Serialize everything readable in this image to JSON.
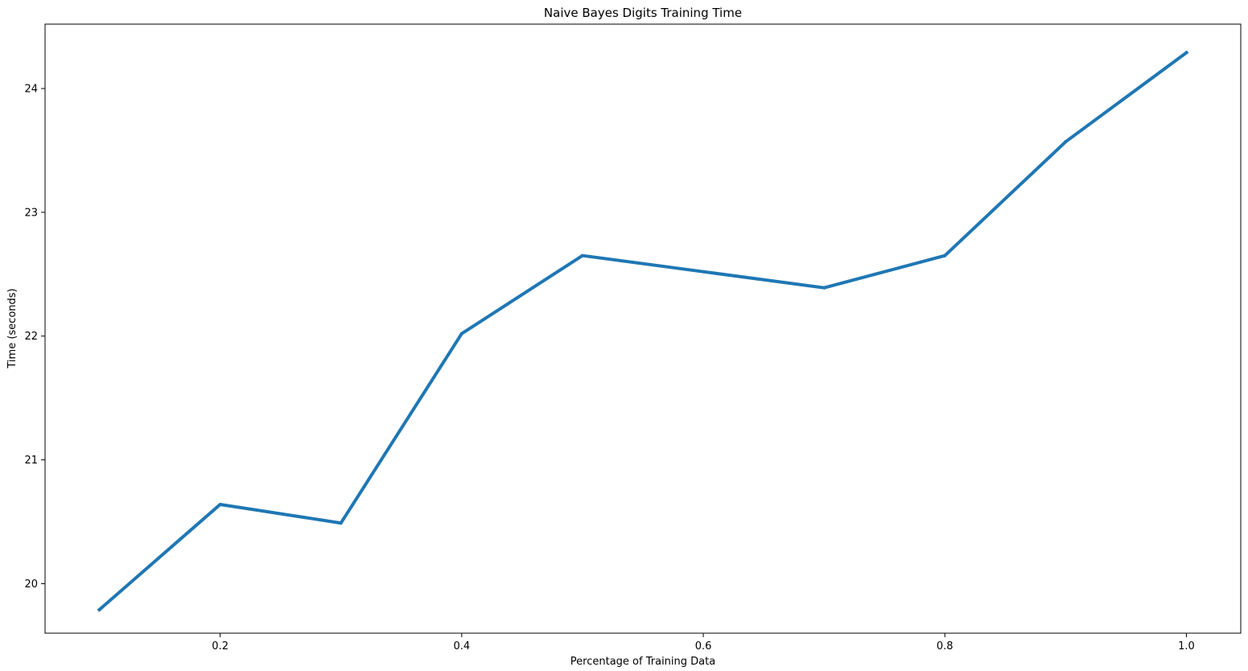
{
  "chart_data": {
    "type": "line",
    "title": "Naive Bayes Digits Training Time",
    "xlabel": "Percentage of Training Data",
    "ylabel": "Time (seconds)",
    "xlim": [
      0.055,
      1.045
    ],
    "ylim": [
      19.6,
      24.52
    ],
    "xticks": [
      0.2,
      0.4,
      0.6,
      0.8,
      1.0
    ],
    "xtick_labels": [
      "0.2",
      "0.4",
      "0.6",
      "0.8",
      "1.0"
    ],
    "yticks": [
      20,
      21,
      22,
      23,
      24
    ],
    "ytick_labels": [
      "20",
      "21",
      "22",
      "23",
      "24"
    ],
    "grid": false,
    "legend": "none",
    "color": "#1f77b4",
    "series": [
      {
        "x": [
          0.1,
          0.2,
          0.3,
          0.4,
          0.5,
          0.6,
          0.7,
          0.8,
          0.9,
          1.0
        ],
        "values": [
          19.79,
          20.64,
          20.49,
          22.02,
          22.65,
          22.52,
          22.39,
          22.65,
          23.57,
          24.29
        ]
      }
    ]
  }
}
